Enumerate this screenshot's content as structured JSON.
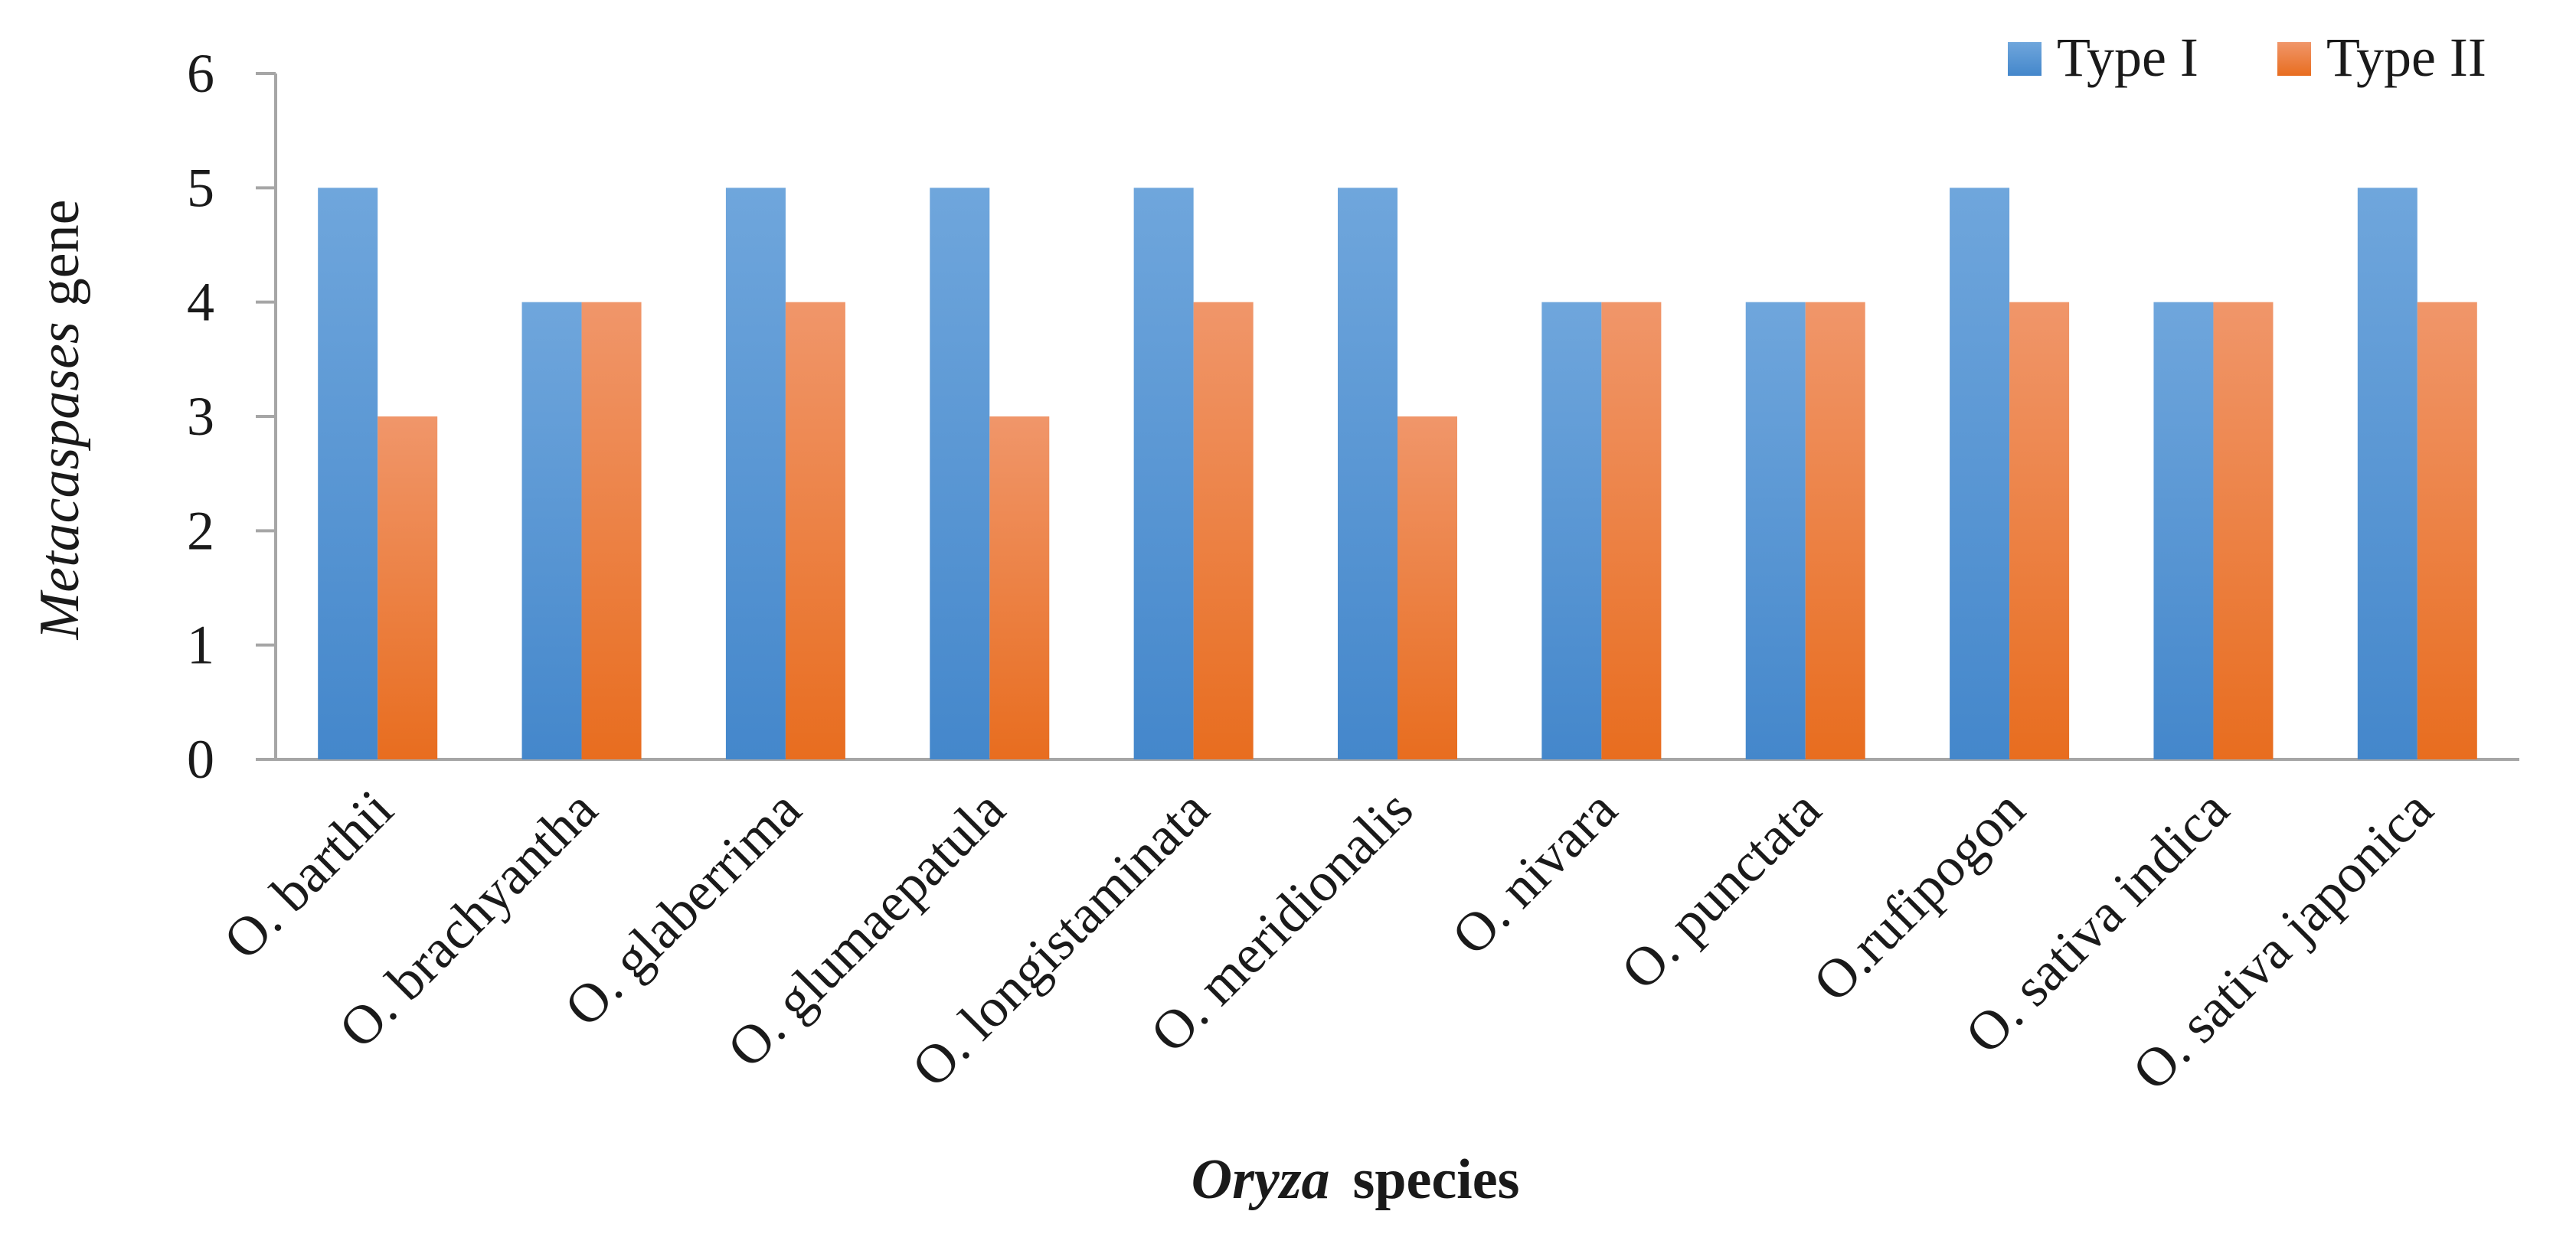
{
  "chart_data": {
    "type": "bar",
    "categories": [
      "O. barthii",
      "O. brachyantha",
      "O. glaberrima",
      "O. glumaepatula",
      "O. longistaminata",
      "O. meridionalis",
      "O. nivara",
      "O. punctata",
      "O.rufipogon",
      "O. sativa indica",
      "O. sativa japonica"
    ],
    "series": [
      {
        "name": "Type I",
        "values": [
          5,
          4,
          5,
          5,
          5,
          5,
          4,
          4,
          5,
          4,
          5
        ]
      },
      {
        "name": "Type II",
        "values": [
          3,
          4,
          4,
          3,
          4,
          3,
          4,
          4,
          4,
          4,
          4
        ]
      }
    ],
    "ylim": [
      0,
      6
    ],
    "yticks": [
      "0",
      "1",
      "2",
      "3",
      "4",
      "5",
      "6"
    ],
    "xlabel": {
      "italic": "Oryza",
      "rest": "species"
    },
    "ylabel": {
      "italic": "Metacaspases",
      "rest": "gene"
    },
    "legend_position": "top-right",
    "colors": {
      "type1": "#5b9bd5",
      "type1_dark": "#4a88c8",
      "type2": "#ed7d31",
      "type2_light": "#f0925a",
      "axis": "#a6a6a6"
    }
  }
}
